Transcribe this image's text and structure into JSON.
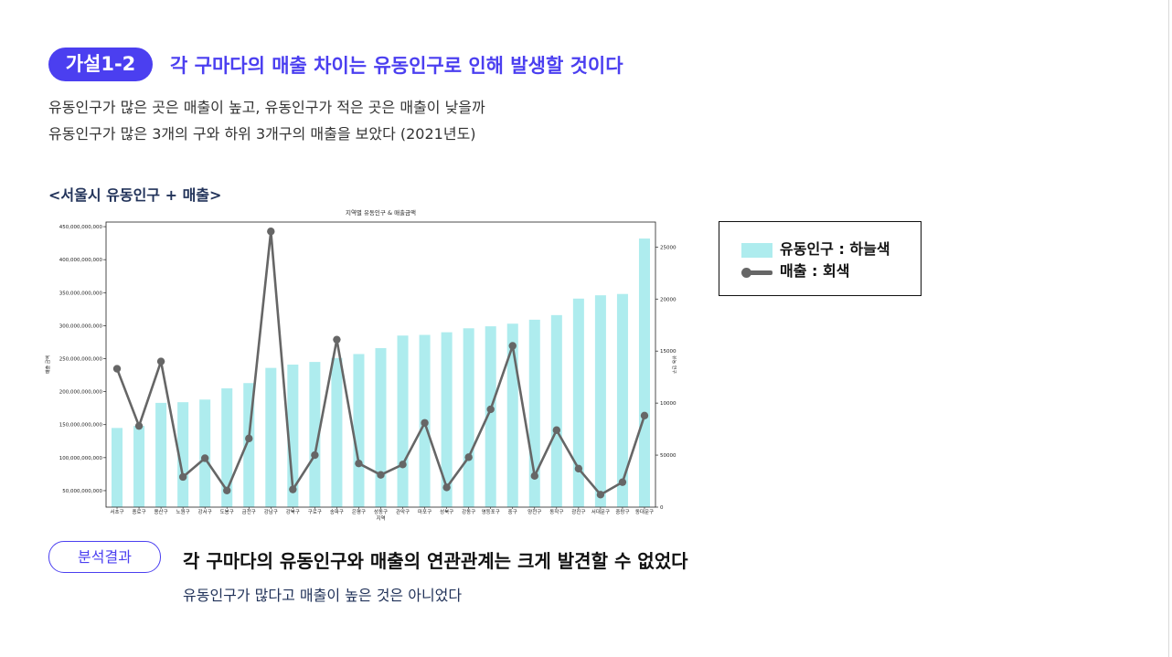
{
  "hypothesis": {
    "badge": "가설1-2",
    "title": "각 구마다의 매출 차이는 유동인구로 인해 발생할 것이다",
    "line1": "유동인구가 많은 곳은 매출이 높고, 유동인구가 적은 곳은 매출이 낮을까",
    "line2": "유동인구가 많은 3개의 구와 하위 3개구의 매출을 보았다 (2021년도)"
  },
  "section_title": "<서울시 유동인구 + 매출>",
  "legend": {
    "bar_label": "유동인구 : 하늘색",
    "line_label": "매출 : 회색"
  },
  "result": {
    "badge": "분석결과",
    "title": "각 구마다의 유동인구와 매출의 연관관계는 크게 발견할 수 없었다",
    "subtitle": "유동인구가 많다고 매출이 높은 것은 아니었다"
  },
  "colors": {
    "accent": "#4b3ff0",
    "bar": "#aeecee",
    "line": "#666666",
    "dark_text": "#22335a"
  },
  "chart_data": {
    "type": "bar",
    "title": "지역별 유동인구 & 매출금액",
    "xlabel": "지역",
    "ylabel": "매출 금액",
    "y2label": "유동 인구",
    "categories": [
      "서초구",
      "종로구",
      "용산구",
      "노원구",
      "강서구",
      "도봉구",
      "금천구",
      "강남구",
      "강북구",
      "구로구",
      "송파구",
      "은평구",
      "성동구",
      "관악구",
      "마포구",
      "성북구",
      "강동구",
      "영등포구",
      "중구",
      "양천구",
      "동작구",
      "광진구",
      "서대문구",
      "중랑구",
      "동대문구"
    ],
    "ylim": [
      25000000000,
      457000000000
    ],
    "y2lim": [
      0,
      274000
    ],
    "yticks": [
      50000000000,
      100000000000,
      150000000000,
      200000000000,
      250000000000,
      300000000000,
      350000000000,
      400000000000,
      450000000000
    ],
    "ytick_labels": [
      "50,000,000,000",
      "100,000,000,000",
      "150,000,000,000",
      "200,000,000,000",
      "250,000,000,000",
      "300,000,000,000",
      "350,000,000,000",
      "400,000,000,000",
      "450,000,000,000"
    ],
    "y2ticks": [
      0,
      50000,
      100000,
      150000,
      200000,
      250000
    ],
    "y2tick_labels": [
      "0",
      "50000",
      "100000",
      "150000",
      "200000",
      "250000"
    ],
    "series": [
      {
        "name": "유동인구",
        "type": "bar",
        "axis": "y",
        "values": [
          145000000000,
          148000000000,
          183000000000,
          184000000000,
          188000000000,
          205000000000,
          213000000000,
          236000000000,
          241000000000,
          245000000000,
          251000000000,
          257000000000,
          266000000000,
          285000000000,
          286000000000,
          290000000000,
          296000000000,
          299000000000,
          303000000000,
          309000000000,
          316000000000,
          341000000000,
          346000000000,
          348000000000,
          432000000000
        ]
      },
      {
        "name": "매출",
        "type": "line",
        "axis": "y2",
        "values": [
          133000,
          78000,
          140000,
          29000,
          47000,
          16000,
          66000,
          265000,
          17000,
          50000,
          161000,
          42000,
          31000,
          41000,
          81000,
          19000,
          48000,
          94000,
          155000,
          30000,
          74000,
          37000,
          12000,
          24000,
          88000
        ]
      }
    ]
  }
}
